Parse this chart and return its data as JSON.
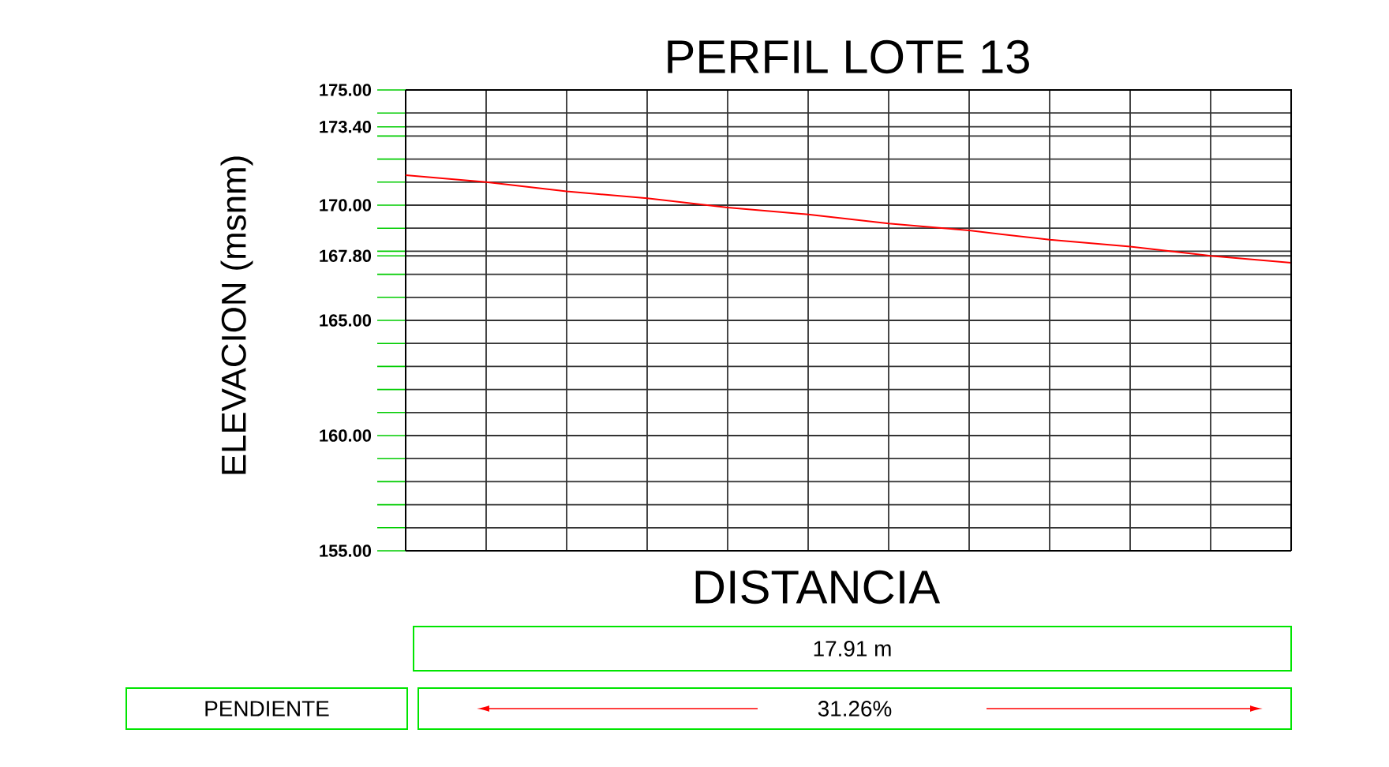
{
  "chart_data": {
    "type": "line",
    "title": "PERFIL LOTE 13",
    "xlabel": "DISTANCIA",
    "ylabel": "ELEVACION (msnm)",
    "categories": [
      null,
      null,
      null,
      null,
      null,
      null,
      null,
      null,
      null,
      null,
      null,
      null
    ],
    "series": [
      {
        "color": "#ff0000",
        "values": [
          171.3,
          171.0,
          170.6,
          170.3,
          169.9,
          169.6,
          169.2,
          168.9,
          168.5,
          168.2,
          167.8,
          167.5
        ]
      }
    ],
    "ylim": [
      155,
      175
    ],
    "yticks": [
      {
        "value": 175,
        "label": "175.00"
      },
      {
        "value": 174,
        "label": null
      },
      {
        "value": 173.4,
        "label": "173.40"
      },
      {
        "value": 173,
        "label": null
      },
      {
        "value": 172,
        "label": null
      },
      {
        "value": 171,
        "label": null
      },
      {
        "value": 170,
        "label": "170.00"
      },
      {
        "value": 169,
        "label": null
      },
      {
        "value": 168,
        "label": null
      },
      {
        "value": 167.8,
        "label": "167.80"
      },
      {
        "value": 167,
        "label": null
      },
      {
        "value": 166,
        "label": null
      },
      {
        "value": 165,
        "label": "165.00"
      },
      {
        "value": 164,
        "label": null
      },
      {
        "value": 163,
        "label": null
      },
      {
        "value": 162,
        "label": null
      },
      {
        "value": 161,
        "label": null
      },
      {
        "value": 160,
        "label": "160.00"
      },
      {
        "value": 159,
        "label": null
      },
      {
        "value": 158,
        "label": null
      },
      {
        "value": 157,
        "label": null
      },
      {
        "value": 156,
        "label": null
      },
      {
        "value": 155,
        "label": "155.00"
      }
    ],
    "grid": true,
    "marker": "none",
    "line_style": "solid",
    "annotations": [
      "17.91 m",
      "PENDIENTE",
      "31.26%"
    ]
  }
}
